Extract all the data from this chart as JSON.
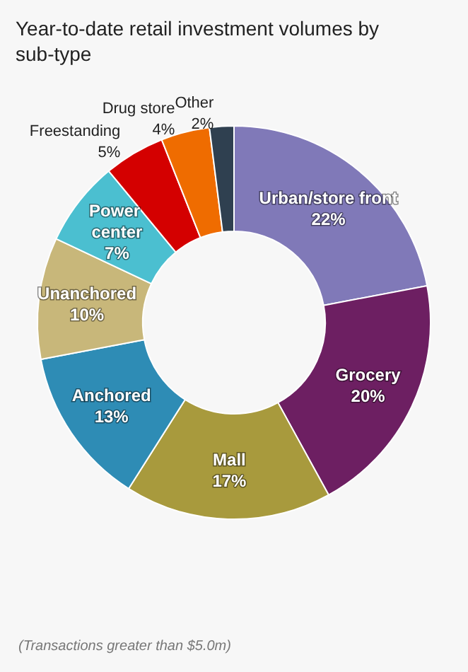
{
  "chart_data": {
    "type": "donut",
    "title": "Year-to-date retail investment volumes by sub-type",
    "categories": [
      "Urban/store front",
      "Grocery",
      "Mall",
      "Anchored",
      "Unanchored",
      "Power center",
      "Freestanding",
      "Drug store",
      "Other"
    ],
    "values": [
      22,
      20,
      17,
      13,
      10,
      7,
      5,
      4,
      2
    ],
    "value_labels": [
      "22%",
      "20%",
      "17%",
      "13%",
      "10%",
      "7%",
      "5%",
      "4%",
      "2%"
    ],
    "colors": [
      "#8079b8",
      "#6d1f62",
      "#a89a3d",
      "#2e8cb5",
      "#c8b77a",
      "#4bbfd0",
      "#d40000",
      "#ef6c00",
      "#2f4050"
    ],
    "legend": false,
    "annotations": [
      "(Transactions greater than $5.0m)"
    ]
  }
}
